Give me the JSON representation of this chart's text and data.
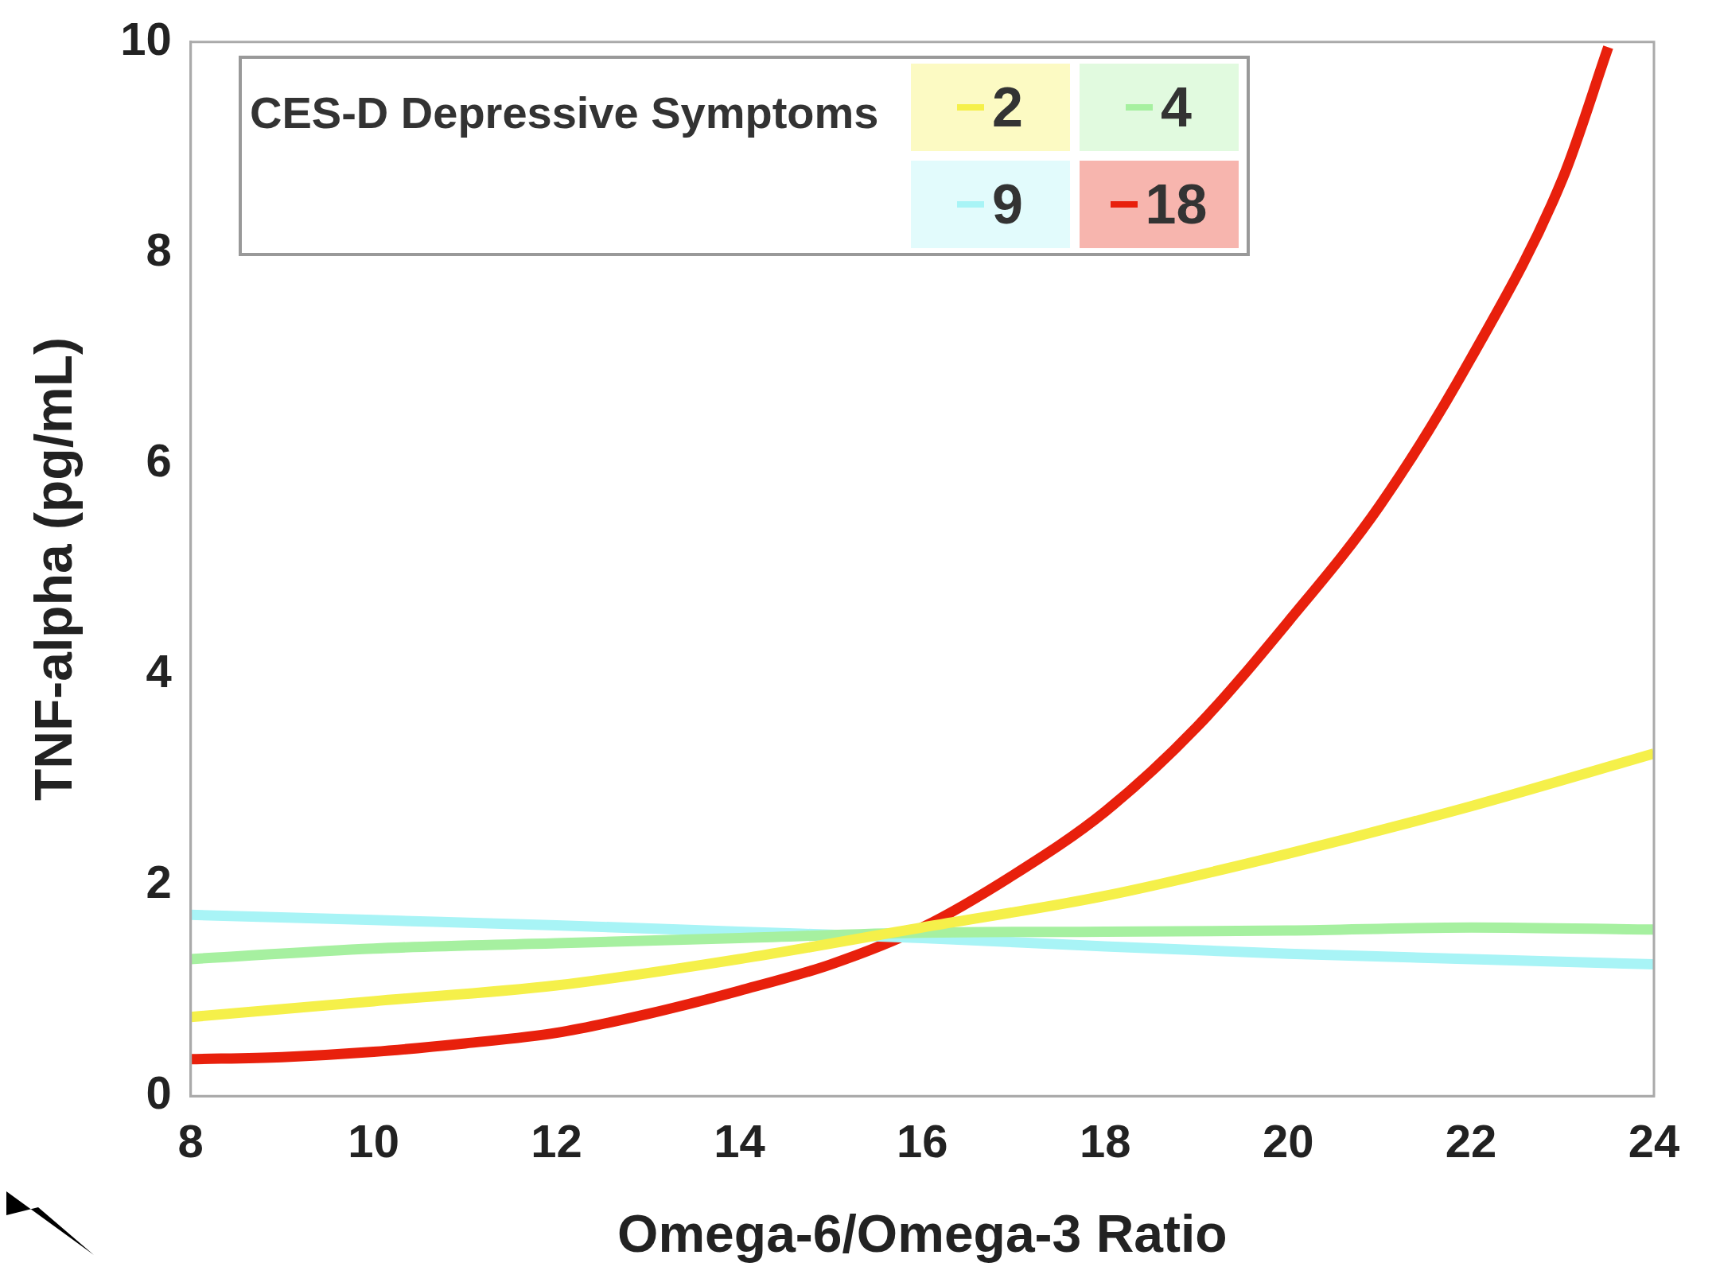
{
  "chart_data": {
    "type": "line",
    "xlabel": "Omega-6/Omega-3 Ratio",
    "ylabel": "TNF-alpha (pg/mL)",
    "legend_title": "CES-D Depressive Symptoms",
    "legend": "top",
    "grid": false,
    "marker": "none",
    "line_style": "solid",
    "xlim": [
      8,
      24
    ],
    "xticks": [
      8,
      10,
      12,
      14,
      16,
      18,
      20,
      22,
      24
    ],
    "ylim": [
      0,
      10
    ],
    "yticks": [
      0,
      2,
      4,
      6,
      8,
      10
    ],
    "series": [
      {
        "name": "2",
        "color": "#f5f04a",
        "x": [
          8,
          10,
          12,
          14,
          16,
          18,
          20,
          22,
          24
        ],
        "values": [
          0.75,
          0.9,
          1.05,
          1.3,
          1.6,
          1.9,
          2.3,
          2.75,
          3.25
        ]
      },
      {
        "name": "4",
        "color": "#a6f0a0",
        "x": [
          8,
          10,
          12,
          14,
          16,
          18,
          20,
          22,
          24
        ],
        "values": [
          1.3,
          1.4,
          1.45,
          1.5,
          1.55,
          1.56,
          1.57,
          1.6,
          1.58
        ]
      },
      {
        "name": "9",
        "color": "#a8f4f6",
        "x": [
          8,
          10,
          12,
          14,
          16,
          18,
          20,
          22,
          24
        ],
        "values": [
          1.72,
          1.67,
          1.62,
          1.56,
          1.5,
          1.42,
          1.35,
          1.3,
          1.25
        ]
      },
      {
        "name": "18",
        "color": "#e8200c",
        "x": [
          8,
          9,
          10,
          11,
          12,
          13,
          14,
          15,
          16,
          17,
          18,
          19,
          20,
          21,
          22,
          23,
          23.5
        ],
        "values": [
          0.35,
          0.37,
          0.42,
          0.5,
          0.6,
          0.78,
          1.0,
          1.25,
          1.6,
          2.1,
          2.7,
          3.5,
          4.5,
          5.6,
          7.0,
          8.7,
          9.95
        ]
      }
    ]
  }
}
